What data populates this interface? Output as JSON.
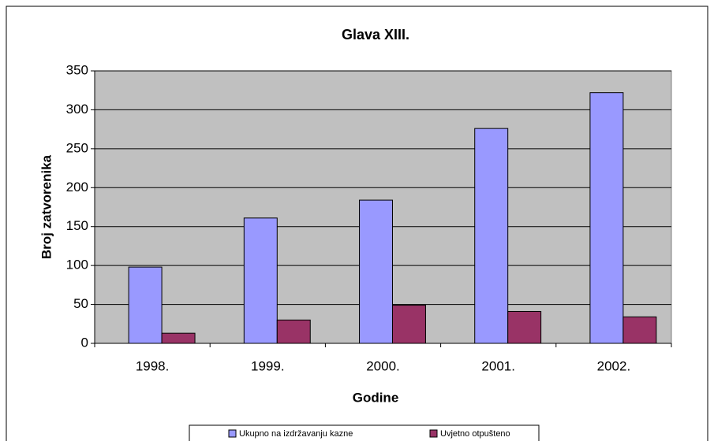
{
  "chart_data": {
    "type": "bar",
    "title": "Glava XIII.",
    "x_label": "Godine",
    "y_label": "Broj zatvorenika",
    "categories": [
      "1998.",
      "1999.",
      "2000.",
      "2001.",
      "2002."
    ],
    "series": [
      {
        "name": "Ukupno na izdržavanju kazne",
        "color": "#9999ff",
        "values": [
          98,
          161,
          184,
          276,
          322
        ]
      },
      {
        "name": "Uvjetno otpušteno",
        "color": "#993366",
        "values": [
          13,
          30,
          49,
          41,
          34
        ]
      }
    ],
    "ylim": [
      0,
      350
    ],
    "yticks": [
      0,
      50,
      100,
      150,
      200,
      250,
      300,
      350
    ],
    "grid": true,
    "plot_background": "#c0c0c0",
    "legend": "bottom"
  }
}
